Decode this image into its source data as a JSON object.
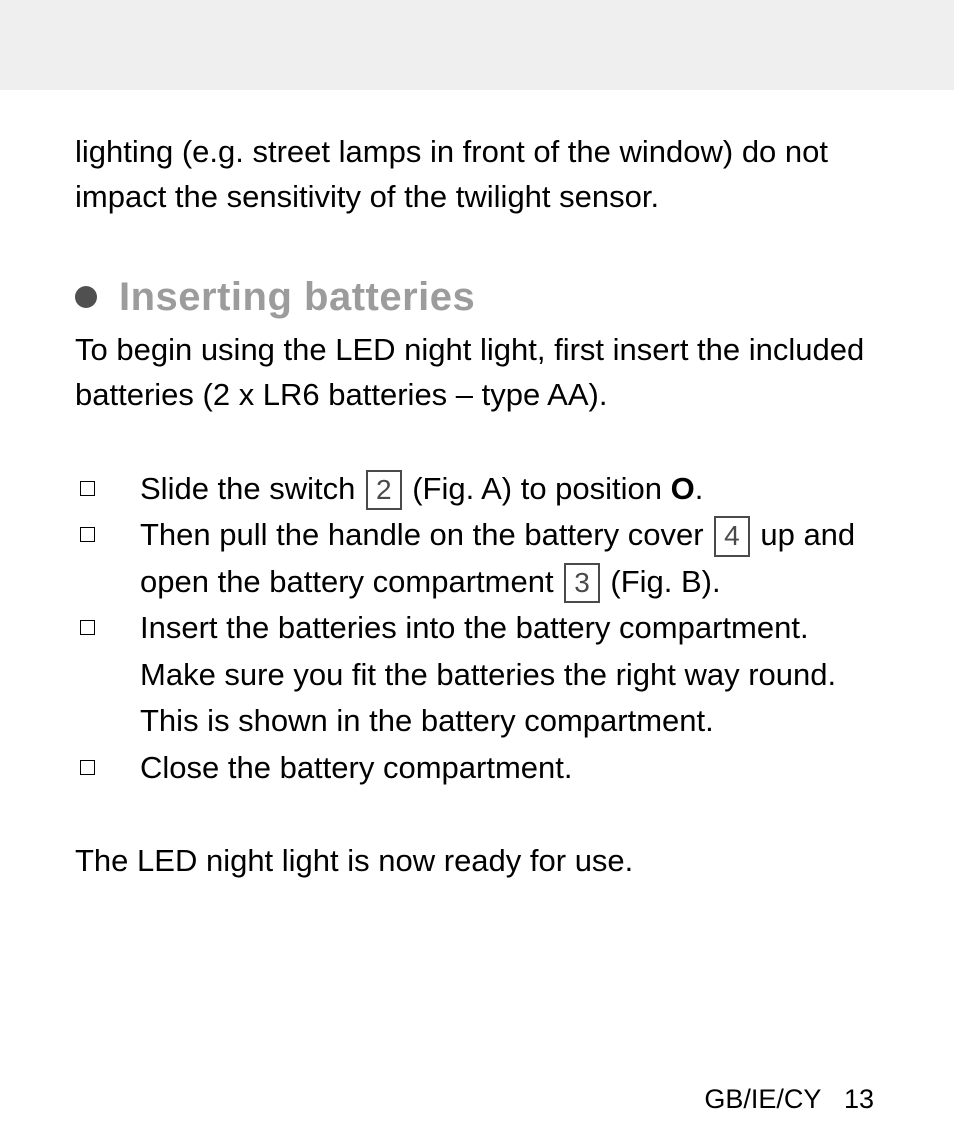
{
  "intro": "lighting (e.g. street lamps in front of the window) do not impact the sensitivity of the twilight sensor.",
  "heading": "Inserting batteries",
  "section_intro": "To begin using the LED night light, first insert the included batteries (2 x LR6 batteries – type AA).",
  "steps": {
    "step1_pre": "Slide the switch ",
    "step1_box": "2",
    "step1_mid": " (Fig. A) to position ",
    "step1_bold": "O",
    "step1_post": ".",
    "step2_pre": "Then pull the handle on the battery cover ",
    "step2_box1": "4",
    "step2_mid": " up and open the battery compartment ",
    "step2_box2": "3",
    "step2_post": " (Fig. B).",
    "step3": "Insert the batteries into the battery compartment. Make sure you fit the batteries the right way round. This is shown in the battery compartment.",
    "step4": "Close the battery compartment."
  },
  "closing": "The LED night light is now ready for use.",
  "footer_locale": "GB/IE/CY",
  "footer_page": "13"
}
